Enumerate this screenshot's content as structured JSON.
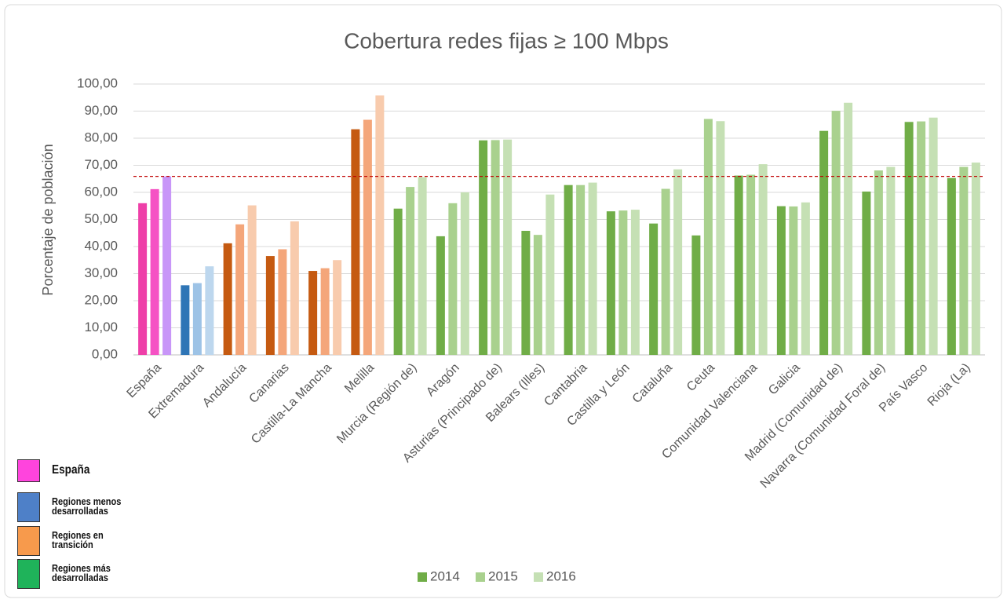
{
  "chart_data": {
    "type": "bar",
    "title": "Cobertura redes fijas ≥ 100 Mbps",
    "y_label": "Porcentaje de población",
    "categories": [
      "España",
      "Extremadura",
      "Andalucía",
      "Canarias",
      "Castilla-La Mancha",
      "Melilla",
      "Murcia (Región de)",
      "Aragón",
      "Asturias (Principado de)",
      "Balears (Illes)",
      "Cantabria",
      "Castilla y León",
      "Cataluña",
      "Ceuta",
      "Comunidad Valenciana",
      "Galicia",
      "Madrid (Comunidad de)",
      "Navarra (Comunidad Foral de)",
      "País Vasco",
      "Rioja (La)"
    ],
    "series": [
      {
        "name": "2014",
        "color": "#70ad47",
        "colors": [
          "#ee3fa8",
          "#2e75b6",
          "#c55a11",
          "#c55a11",
          "#c55a11",
          "#c55a11",
          "#70ad47",
          "#70ad47",
          "#70ad47",
          "#70ad47",
          "#70ad47",
          "#70ad47",
          "#70ad47",
          "#70ad47",
          "#70ad47",
          "#70ad47",
          "#70ad47",
          "#70ad47",
          "#70ad47",
          "#70ad47"
        ],
        "values": [
          56.0,
          25.7,
          41.2,
          36.5,
          31.0,
          83.3,
          54.0,
          43.8,
          79.2,
          45.8,
          62.7,
          53.0,
          48.5,
          44.1,
          66.2,
          54.9,
          82.7,
          60.3,
          86.0,
          65.3
        ]
      },
      {
        "name": "2015",
        "color": "#a9d18e",
        "colors": [
          "#f552c4",
          "#9dc3e6",
          "#f4a67a",
          "#f4a67a",
          "#f4a67a",
          "#f4a67a",
          "#a9d18e",
          "#a9d18e",
          "#a9d18e",
          "#a9d18e",
          "#a9d18e",
          "#a9d18e",
          "#a9d18e",
          "#a9d18e",
          "#a9d18e",
          "#a9d18e",
          "#a9d18e",
          "#a9d18e",
          "#a9d18e",
          "#a9d18e"
        ],
        "values": [
          61.2,
          26.5,
          48.2,
          39.0,
          32.0,
          86.8,
          62.0,
          56.0,
          79.3,
          44.3,
          62.7,
          53.3,
          61.3,
          87.1,
          66.5,
          54.8,
          90.1,
          68.1,
          86.2,
          69.4
        ]
      },
      {
        "name": "2016",
        "color": "#c5e0b4",
        "colors": [
          "#c896f8",
          "#bdd7ee",
          "#f8cbad",
          "#f8cbad",
          "#f8cbad",
          "#f8cbad",
          "#c5e0b4",
          "#c5e0b4",
          "#c5e0b4",
          "#c5e0b4",
          "#c5e0b4",
          "#c5e0b4",
          "#c5e0b4",
          "#c5e0b4",
          "#c5e0b4",
          "#c5e0b4",
          "#c5e0b4",
          "#c5e0b4",
          "#c5e0b4",
          "#c5e0b4"
        ],
        "values": [
          65.9,
          32.7,
          55.2,
          49.3,
          35.0,
          95.8,
          65.6,
          60.0,
          79.5,
          59.2,
          63.6,
          53.6,
          68.5,
          86.3,
          70.4,
          56.3,
          93.1,
          69.4,
          87.6,
          71.0
        ]
      }
    ],
    "reference_line": {
      "value": 65.9,
      "color": "#c00000"
    },
    "groups": [
      {
        "name": "España",
        "color": "#ff44dd"
      },
      {
        "name": "Regiones menos desarrolladas",
        "color": "#4e80c8"
      },
      {
        "name": "Regiones en transición",
        "color": "#f79a4c"
      },
      {
        "name": "Regiones más desarrolladas",
        "color": "#1fb35a"
      }
    ],
    "ylim": [
      0,
      100
    ],
    "yticks": [
      {
        "value": 0,
        "label": "0,00"
      },
      {
        "value": 10,
        "label": "10,00"
      },
      {
        "value": 20,
        "label": "20,00"
      },
      {
        "value": 30,
        "label": "30,00"
      },
      {
        "value": 40,
        "label": "40,00"
      },
      {
        "value": 50,
        "label": "50,00"
      },
      {
        "value": 60,
        "label": "60,00"
      },
      {
        "value": 70,
        "label": "70,00"
      },
      {
        "value": 80,
        "label": "80,00"
      },
      {
        "value": 90,
        "label": "90,00"
      },
      {
        "value": 100,
        "label": "100,00"
      }
    ],
    "grid": true,
    "legend": "bottom"
  }
}
